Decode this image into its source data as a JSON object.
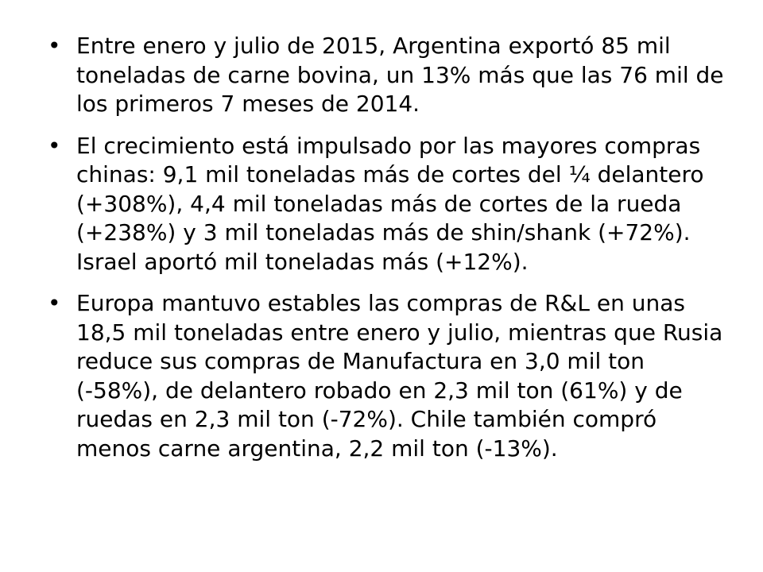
{
  "slide": {
    "bullets": [
      {
        "marker": "•",
        "text": "Entre enero y julio de 2015, Argentina exportó 85 mil toneladas de carne bovina, un 13% más que las 76 mil de los primeros 7 meses de 2014."
      },
      {
        "marker": "•",
        "text": "El crecimiento está impulsado por las mayores compras chinas: 9,1 mil toneladas más de cortes del ¼ delantero (+308%), 4,4 mil toneladas más de cortes de la rueda (+238%) y 3 mil toneladas más de shin/shank (+72%). Israel aportó mil toneladas más (+12%)."
      },
      {
        "marker": "•",
        "text": "Europa mantuvo estables las compras de R&L en unas 18,5 mil toneladas entre enero y julio, mientras que Rusia reduce sus compras de Manufactura en 3,0 mil ton (-58%), de delantero robado en 2,3 mil ton (61%) y de ruedas en 2,3 mil ton (-72%). Chile también compró menos carne argentina, 2,2 mil ton (-13%)."
      }
    ]
  }
}
